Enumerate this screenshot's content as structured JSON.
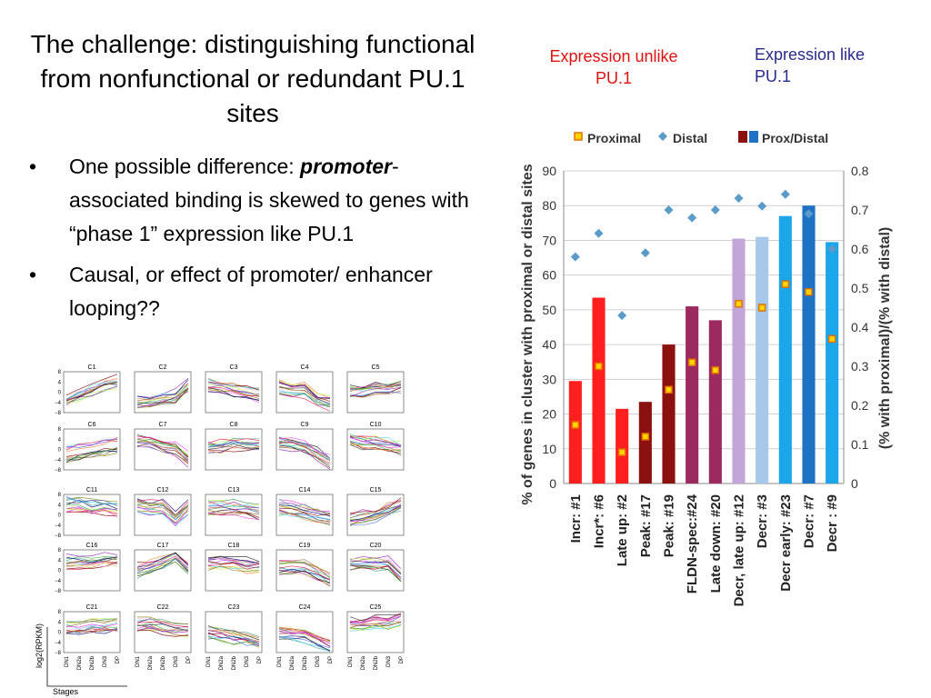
{
  "slide": {
    "title": "The challenge: distinguishing functional from nonfunctional or redundant PU.1 sites",
    "bullets": [
      {
        "pre": "One possible difference: ",
        "em": "promoter",
        "post": "-associated binding is skewed to genes with “phase 1” expression like PU.1"
      },
      {
        "pre": "Causal, or effect of promoter/ enhancer looping??",
        "em": "",
        "post": ""
      }
    ],
    "bullet_glyph": "•"
  },
  "headers": {
    "unlike": "Expression unlike PU.1",
    "like": "Expression like PU.1",
    "unlike_color": "#e01010",
    "like_color": "#2a2a8c"
  },
  "mini_plots": {
    "titles": [
      "C1",
      "C2",
      "C3",
      "C4",
      "C5",
      "C6",
      "C7",
      "C8",
      "C9",
      "C10",
      "C11",
      "C12",
      "C13",
      "C14",
      "C15",
      "C16",
      "C17",
      "C18",
      "C19",
      "C20",
      "C21",
      "C22",
      "C23",
      "C24",
      "C25"
    ],
    "yticks": [
      "8",
      "4",
      "0",
      "−4",
      "−8"
    ],
    "xticks": [
      "DN1",
      "DN2a",
      "DN2b",
      "DN3",
      "DP"
    ],
    "ylabel": "log2(RPKM)",
    "xlabel": "Stages",
    "trends": [
      [
        -3,
        -1,
        1,
        3,
        4
      ],
      [
        -3,
        -3,
        -2,
        -1,
        3
      ],
      [
        3,
        2,
        1,
        0,
        -1
      ],
      [
        2,
        1,
        1,
        -3,
        -4
      ],
      [
        1,
        1,
        2,
        2,
        3
      ],
      [
        -2,
        -1,
        0,
        1,
        2
      ],
      [
        3,
        3,
        1,
        0,
        -4
      ],
      [
        1,
        1,
        2,
        2,
        2
      ],
      [
        3,
        2,
        1,
        -2,
        -5
      ],
      [
        4,
        3,
        3,
        2,
        1
      ],
      [
        4,
        4,
        3,
        3,
        2
      ],
      [
        4,
        3,
        3,
        -2,
        3
      ],
      [
        3,
        3,
        3,
        2,
        1
      ],
      [
        3,
        2,
        1,
        0,
        -1
      ],
      [
        -2,
        -1,
        0,
        2,
        4
      ],
      [
        3,
        3,
        3,
        4,
        4
      ],
      [
        0,
        1,
        3,
        5,
        1
      ],
      [
        3,
        3,
        3,
        2,
        2
      ],
      [
        1,
        1,
        1,
        -1,
        -4
      ],
      [
        3,
        3,
        3,
        3,
        -2
      ],
      [
        2,
        2,
        3,
        3,
        3
      ],
      [
        3,
        3,
        2,
        1,
        1
      ],
      [
        0,
        -1,
        -2,
        -3,
        -4
      ],
      [
        0,
        0,
        -1,
        -3,
        -5
      ],
      [
        3,
        3,
        4,
        4,
        5
      ]
    ]
  },
  "chart_data": {
    "type": "bar",
    "categories": [
      "Incr: #1",
      "Incr*: #6",
      "Late up: #2",
      "Peak: #17",
      "Peak: #19",
      "FLDN-spec:#24",
      "Late down: #20",
      "Decr, late up: #12",
      "Decr: #3",
      "Decr early: #23",
      "Decr: #7",
      "Decr : #9"
    ],
    "series": [
      {
        "name": "Prox/Distal",
        "axis": "left",
        "values": [
          29.5,
          53.5,
          21.5,
          23.5,
          40,
          51,
          47,
          70.5,
          71,
          77,
          80,
          69.5
        ]
      },
      {
        "name": "Proximal",
        "axis": "right",
        "values": [
          0.15,
          0.3,
          0.08,
          0.12,
          0.24,
          0.31,
          0.29,
          0.46,
          0.45,
          0.51,
          0.49,
          0.37
        ]
      },
      {
        "name": "Distal",
        "axis": "right",
        "values": [
          0.58,
          0.64,
          0.43,
          0.59,
          0.7,
          0.68,
          0.7,
          0.73,
          0.71,
          0.74,
          0.69,
          0.6
        ]
      }
    ],
    "bar_colors": [
      "#ff1f1f",
      "#ff1f1f",
      "#ff1f1f",
      "#8b1010",
      "#8b1010",
      "#9b2b5e",
      "#9b2b5e",
      "#c2a6d8",
      "#a8c8ea",
      "#1aa6e8",
      "#1e72c4",
      "#1aa6e8"
    ],
    "ylabel": "% of genes in cluster with proximal or distal sites",
    "y2label": "(% with proximal)/(% with distal)",
    "ylim": [
      0,
      90
    ],
    "y2lim": [
      0,
      0.8
    ],
    "yticks": [
      "0",
      "10",
      "20",
      "30",
      "40",
      "50",
      "60",
      "70",
      "80",
      "90"
    ],
    "y2ticks": [
      "0",
      "0.1",
      "0.2",
      "0.3",
      "0.4",
      "0.5",
      "0.6",
      "0.7",
      "0.8"
    ],
    "legend": {
      "proximal": "Proximal",
      "distal": "Distal",
      "prox_distal": "Prox/Distal",
      "placement": "top"
    },
    "grid": true
  }
}
